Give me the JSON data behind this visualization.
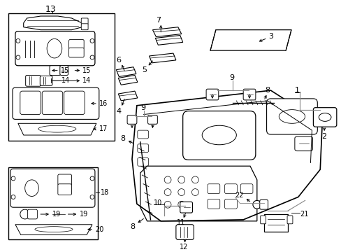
{
  "bg_color": "#ffffff",
  "fig_width": 4.89,
  "fig_height": 3.6,
  "dpi": 100,
  "black": "#000000",
  "gray": "#888888"
}
